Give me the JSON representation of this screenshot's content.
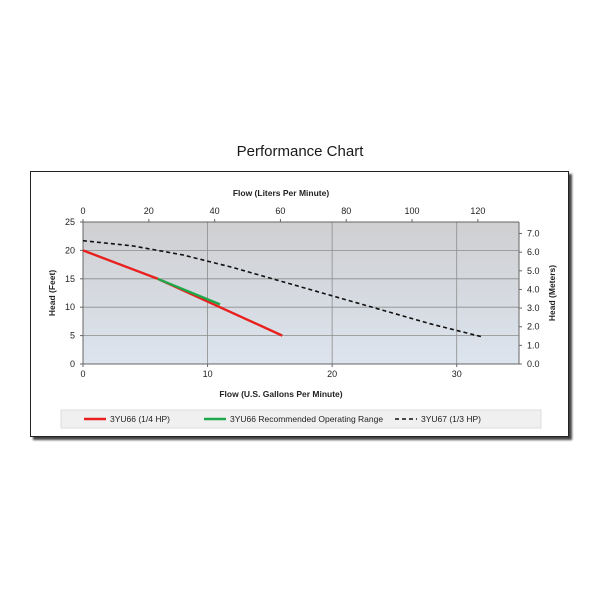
{
  "title": "Performance Chart",
  "chart_data": {
    "type": "line",
    "title": "Performance Chart",
    "xlabel": "Flow (U.S. Gallons Per Minute)",
    "x2label": "Flow (Liters Per Minute)",
    "ylabel": "Head (Feet)",
    "y2label": "Head (Meters)",
    "xlim": [
      0,
      35
    ],
    "ylim": [
      0,
      25
    ],
    "x2lim": [
      0,
      132.5
    ],
    "y2lim": [
      0,
      7.62
    ],
    "x_ticks": [
      "0",
      "10",
      "20",
      "30"
    ],
    "x_tick_values": [
      0,
      10,
      20,
      30
    ],
    "y_ticks": [
      "0",
      "5",
      "10",
      "15",
      "20",
      "25"
    ],
    "y_tick_values": [
      0,
      5,
      10,
      15,
      20,
      25
    ],
    "x2_ticks": [
      "0",
      "20",
      "40",
      "60",
      "80",
      "100",
      "120"
    ],
    "x2_tick_values": [
      0,
      20,
      40,
      60,
      80,
      100,
      120
    ],
    "y2_ticks": [
      "0.0",
      "1.0",
      "2.0",
      "3.0",
      "4.0",
      "5.0",
      "6.0",
      "7.0"
    ],
    "y2_tick_values": [
      0,
      1,
      2,
      3,
      4,
      5,
      6,
      7
    ],
    "grid": true,
    "legend_position": "bottom",
    "series": [
      {
        "name": "3YU66 (1/4 HP)",
        "color": "#e8211e",
        "style": "solid",
        "x": [
          0,
          6,
          16
        ],
        "y": [
          20,
          15,
          5
        ]
      },
      {
        "name": "3YU66 Recommended Operating Range",
        "color": "#1fa84a",
        "style": "solid",
        "x": [
          6,
          11
        ],
        "y": [
          15,
          10.5
        ]
      },
      {
        "name": "3YU67 (1/3 HP)",
        "color": "#111111",
        "style": "dashed",
        "x": [
          0,
          4,
          8,
          12,
          16,
          20,
          24,
          28,
          32
        ],
        "y": [
          21.7,
          20.8,
          19.2,
          17.0,
          14.5,
          12.0,
          9.5,
          7.0,
          4.8
        ]
      }
    ]
  }
}
